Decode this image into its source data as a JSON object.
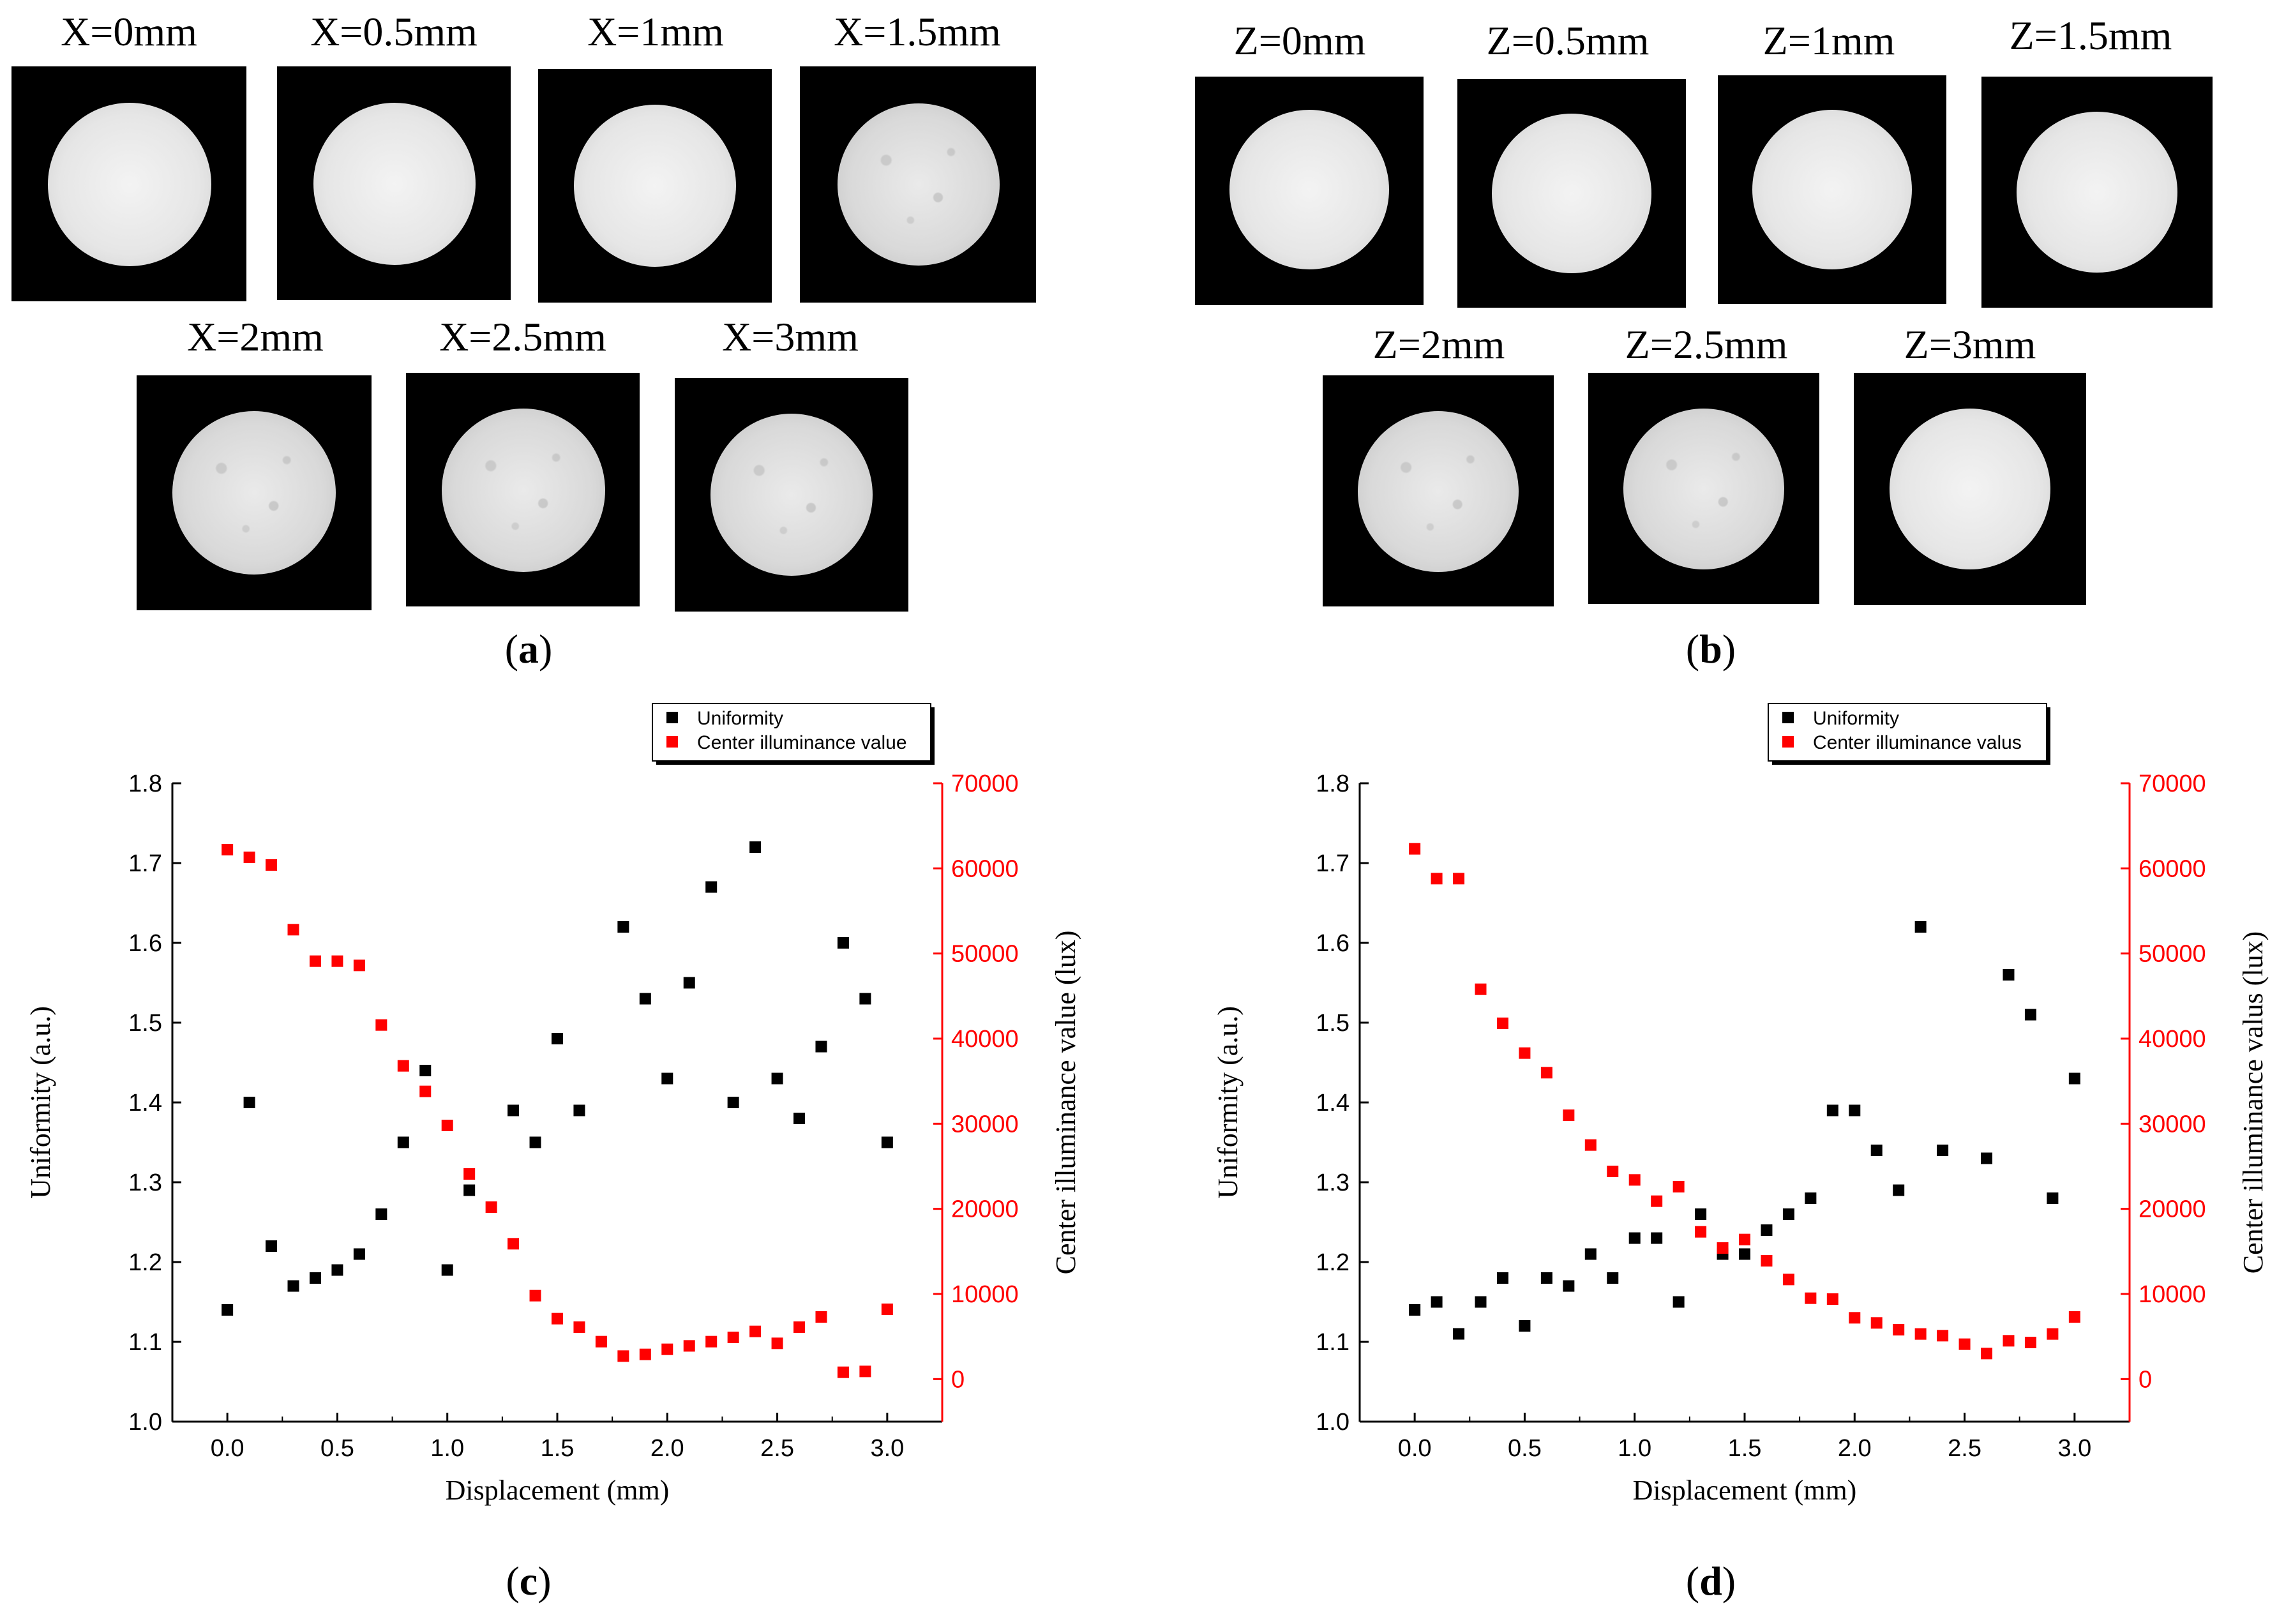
{
  "panels": {
    "a": {
      "caption_paren_open": "(",
      "caption_letter": "a",
      "caption_paren_close": ")",
      "images": [
        "X=0mm",
        "X=0.5mm",
        "X=1mm",
        "X=1.5mm",
        "X=2mm",
        "X=2.5mm",
        "X=3mm"
      ]
    },
    "b": {
      "caption_paren_open": "(",
      "caption_letter": "b",
      "caption_paren_close": ")",
      "images": [
        "Z=0mm",
        "Z=0.5mm",
        "Z=1mm",
        "Z=1.5mm",
        "Z=2mm",
        "Z=2.5mm",
        "Z=3mm"
      ]
    },
    "c": {
      "caption_paren_open": "(",
      "caption_letter": "c",
      "caption_paren_close": ")"
    },
    "d": {
      "caption_paren_open": "(",
      "caption_letter": "d",
      "caption_paren_close": ")"
    }
  },
  "colors": {
    "uniformity": "#000000",
    "illuminance": "#ff0000"
  },
  "chart_data": [
    {
      "id": "c",
      "type": "scatter",
      "xlabel": "Displacement (mm)",
      "ylabel_left": "Uniformity (a.u.)",
      "ylabel_right": "Center illuminance value (lux)",
      "xlim": [
        -0.25,
        3.25
      ],
      "xticks": [
        "0.0",
        "0.5",
        "1.0",
        "1.5",
        "2.0",
        "2.5",
        "3.0"
      ],
      "ylim_left": [
        1.0,
        1.8
      ],
      "yticks_left": [
        "1.0",
        "1.1",
        "1.2",
        "1.3",
        "1.4",
        "1.5",
        "1.6",
        "1.7",
        "1.8"
      ],
      "ylim_right": [
        -5000,
        70000
      ],
      "yticks_right": [
        "0",
        "10000",
        "20000",
        "30000",
        "40000",
        "50000",
        "60000",
        "70000"
      ],
      "legend": [
        "Uniformity",
        "Center illuminance value"
      ],
      "x": [
        0.0,
        0.1,
        0.2,
        0.3,
        0.4,
        0.5,
        0.6,
        0.7,
        0.8,
        0.9,
        1.0,
        1.1,
        1.2,
        1.3,
        1.4,
        1.5,
        1.6,
        1.7,
        1.8,
        1.9,
        2.0,
        2.1,
        2.2,
        2.3,
        2.4,
        2.5,
        2.6,
        2.7,
        2.8,
        2.9,
        3.0
      ],
      "series": [
        {
          "name": "Uniformity",
          "axis": "left",
          "color": "#000000",
          "values": [
            1.14,
            1.4,
            1.22,
            1.17,
            1.18,
            1.19,
            1.21,
            1.26,
            1.35,
            1.44,
            1.19,
            1.29,
            null,
            1.39,
            1.35,
            1.48,
            1.39,
            null,
            1.62,
            1.53,
            1.43,
            1.55,
            1.67,
            1.4,
            1.72,
            1.43,
            1.38,
            1.47,
            1.6,
            1.53,
            1.35
          ]
        },
        {
          "name": "Center illuminance value",
          "axis": "right",
          "color": "#ff0000",
          "values": [
            62200,
            61300,
            60400,
            52800,
            49100,
            49100,
            48600,
            41600,
            36800,
            33800,
            29800,
            24100,
            20200,
            15900,
            9800,
            7100,
            6100,
            4400,
            2700,
            2900,
            3500,
            3900,
            4400,
            4900,
            5600,
            4200,
            6100,
            7300,
            800,
            900,
            8200
          ]
        }
      ]
    },
    {
      "id": "d",
      "type": "scatter",
      "xlabel": "Displacement (mm)",
      "ylabel_left": "Uniformity (a.u.)",
      "ylabel_right": "Center illuminance valus (lux)",
      "xlim": [
        -0.25,
        3.25
      ],
      "xticks": [
        "0.0",
        "0.5",
        "1.0",
        "1.5",
        "2.0",
        "2.5",
        "3.0"
      ],
      "ylim_left": [
        1.0,
        1.8
      ],
      "yticks_left": [
        "1.0",
        "1.1",
        "1.2",
        "1.3",
        "1.4",
        "1.5",
        "1.6",
        "1.7",
        "1.8"
      ],
      "ylim_right": [
        -5000,
        70000
      ],
      "yticks_right": [
        "0",
        "10000",
        "20000",
        "30000",
        "40000",
        "50000",
        "60000",
        "70000"
      ],
      "legend": [
        "Uniformity",
        "Center illuminance valus"
      ],
      "x": [
        0.0,
        0.1,
        0.2,
        0.3,
        0.4,
        0.5,
        0.6,
        0.7,
        0.8,
        0.9,
        1.0,
        1.1,
        1.2,
        1.3,
        1.4,
        1.5,
        1.6,
        1.7,
        1.8,
        1.9,
        2.0,
        2.1,
        2.2,
        2.3,
        2.4,
        2.5,
        2.6,
        2.7,
        2.8,
        2.9,
        3.0
      ],
      "series": [
        {
          "name": "Uniformity",
          "axis": "left",
          "color": "#000000",
          "values": [
            1.14,
            1.15,
            1.11,
            1.15,
            1.18,
            1.12,
            1.18,
            1.17,
            1.21,
            1.18,
            1.23,
            1.23,
            1.15,
            1.26,
            1.21,
            1.21,
            1.24,
            1.26,
            1.28,
            1.39,
            1.39,
            1.34,
            1.29,
            1.62,
            1.34,
            null,
            1.33,
            1.56,
            1.51,
            1.28,
            1.43
          ]
        },
        {
          "name": "Center illuminance valus",
          "axis": "right",
          "color": "#ff0000",
          "values": [
            62300,
            58800,
            58800,
            45800,
            41800,
            38300,
            36000,
            31000,
            27500,
            24400,
            23400,
            20900,
            22600,
            17300,
            15400,
            16400,
            13900,
            11700,
            9500,
            9400,
            7200,
            6600,
            5800,
            5300,
            5100,
            4100,
            3000,
            4500,
            4300,
            5300,
            7300
          ]
        }
      ]
    }
  ]
}
